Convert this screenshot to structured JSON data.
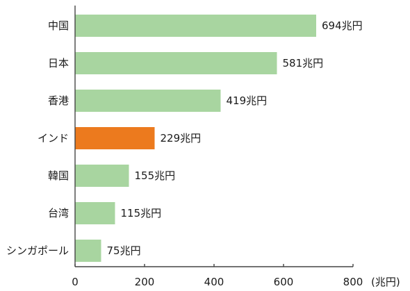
{
  "chart_data": {
    "type": "bar",
    "orientation": "horizontal",
    "categories": [
      "中国",
      "日本",
      "香港",
      "インド",
      "韓国",
      "台湾",
      "シンガポール"
    ],
    "values": [
      694,
      581,
      419,
      229,
      155,
      115,
      75
    ],
    "data_labels": [
      "694兆円",
      "581兆円",
      "419兆円",
      "229兆円",
      "155兆円",
      "115兆円",
      "75兆円"
    ],
    "highlight_category": "インド",
    "xlim": [
      0,
      800
    ],
    "xticks": [
      0,
      200,
      400,
      600,
      800
    ],
    "xunit": "(兆円)",
    "grid": false,
    "colors": {
      "bar": "#a8d5a0",
      "highlight": "#ec7a1e",
      "axis": "#444444"
    }
  }
}
